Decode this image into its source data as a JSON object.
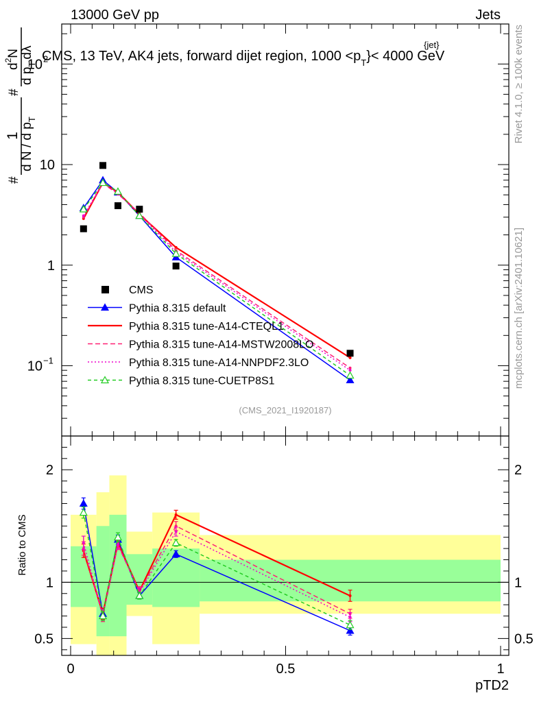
{
  "header": {
    "left": "13000 GeV pp",
    "right": "Jets"
  },
  "side_labels": {
    "rivet": "Rivet 4.1.0, ≥ 100k events",
    "mcplots": "mcplots.cern.ch [arXiv:2401.10621]"
  },
  "chart_data": {
    "type": "line",
    "title": "CMS, 13 TeV, AK4 jets, forward dijet region, 1000 <p",
    "title_sup": "{jet}",
    "title_sub": "T",
    "title_end": "}< 4000 GeV",
    "analysis_id": "(CMS_2021_I1920187)",
    "xlabel": "pTD2",
    "ylabel": "1/dN/dpT dN/(dpT dλ)",
    "ylabel_parts": {
      "hash1": "#",
      "hash2": "#",
      "num": "1",
      "den": "d N / d p",
      "den_sub": "T",
      "frac2_num": "d",
      "frac2_num_sup": "2",
      "frac2_num_end": "N",
      "frac2_den": "d p",
      "frac2_den_sub": "T",
      "frac2_den_end": "dλ"
    },
    "ratio_ylabel": "Ratio to CMS",
    "xlim": [
      0,
      1
    ],
    "ylim_main": [
      0.02,
      250
    ],
    "ylim_ratio": [
      0.35,
      2.3
    ],
    "x_ticks": [
      0,
      0.5,
      1
    ],
    "x_tick_labels": [
      "0",
      "0.5",
      "1"
    ],
    "y_ticks_main": [
      {
        "value": 0.1,
        "base": "10",
        "exp": "−1"
      },
      {
        "value": 1,
        "base": "1",
        "exp": ""
      },
      {
        "value": 10,
        "base": "10",
        "exp": ""
      },
      {
        "value": 100,
        "base": "10",
        "exp": "2"
      }
    ],
    "y_ticks_ratio": [
      {
        "value": 0.5,
        "label": "0.5"
      },
      {
        "value": 1,
        "label": "1"
      },
      {
        "value": 2,
        "label": "2"
      }
    ],
    "bins": [
      {
        "lo": 0.0,
        "hi": 0.06
      },
      {
        "lo": 0.06,
        "hi": 0.09
      },
      {
        "lo": 0.09,
        "hi": 0.13
      },
      {
        "lo": 0.13,
        "hi": 0.19
      },
      {
        "lo": 0.19,
        "hi": 0.3
      },
      {
        "lo": 0.3,
        "hi": 1.0
      }
    ],
    "x": [
      0.03,
      0.075,
      0.11,
      0.16,
      0.245,
      0.65
    ],
    "data": {
      "name": "CMS",
      "values": [
        2.3,
        9.8,
        3.9,
        3.6,
        0.98,
        0.133
      ],
      "band_inner": [
        [
          0.78,
          1.32
        ],
        [
          0.52,
          1.5
        ],
        [
          0.52,
          1.6
        ],
        [
          0.8,
          1.25
        ],
        [
          0.78,
          1.3
        ],
        [
          0.83,
          1.2
        ]
      ],
      "band_outer": [
        [
          0.45,
          1.6
        ],
        [
          0.33,
          1.8
        ],
        [
          0.33,
          1.95
        ],
        [
          0.7,
          1.45
        ],
        [
          0.45,
          1.62
        ],
        [
          0.72,
          1.42
        ]
      ]
    },
    "series": [
      {
        "name": "Pythia 8.315 default",
        "color": "#0000ff",
        "dash": "",
        "marker": "filled-triangle",
        "values": [
          3.7,
          7.0,
          5.3,
          3.1,
          1.2,
          0.072
        ],
        "ratio": [
          1.7,
          0.72,
          1.38,
          0.88,
          1.25,
          0.57
        ],
        "ratio_err": [
          0.05,
          0.04,
          0.04,
          0.03,
          0.03,
          0.04
        ]
      },
      {
        "name": "Pythia 8.315 tune-A14-CTEQL1",
        "color": "#ff0000",
        "dash": "",
        "marker": "none",
        "values": [
          2.9,
          6.6,
          5.3,
          3.2,
          1.5,
          0.12
        ],
        "ratio": [
          1.28,
          0.72,
          1.35,
          0.92,
          1.6,
          0.88
        ],
        "ratio_err": [
          0.06,
          0.05,
          0.04,
          0.04,
          0.04,
          0.05
        ]
      },
      {
        "name": "Pythia 8.315 tune-A14-MSTW2008LO",
        "color": "#ff1f74",
        "dash": "7,4",
        "marker": "none",
        "values": [
          3.0,
          6.5,
          5.1,
          3.3,
          1.4,
          0.095
        ],
        "ratio": [
          1.3,
          0.7,
          1.33,
          0.92,
          1.5,
          0.72
        ],
        "ratio_err": [
          0.06,
          0.05,
          0.04,
          0.04,
          0.04,
          0.04
        ]
      },
      {
        "name": "Pythia 8.315 tune-A14-NNPDF2.3LO",
        "color": "#ee00cc",
        "dash": "2,3",
        "marker": "none",
        "values": [
          3.1,
          6.6,
          5.2,
          3.2,
          1.35,
          0.09
        ],
        "ratio": [
          1.35,
          0.71,
          1.34,
          0.91,
          1.45,
          0.69
        ],
        "ratio_err": [
          0.06,
          0.05,
          0.04,
          0.04,
          0.04,
          0.04
        ]
      },
      {
        "name": "Pythia 8.315 tune-CUETP8S1",
        "color": "#22cc22",
        "dash": "5,4",
        "marker": "open-triangle",
        "values": [
          3.6,
          6.6,
          5.4,
          3.1,
          1.3,
          0.08
        ],
        "ratio": [
          1.62,
          0.7,
          1.4,
          0.88,
          1.35,
          0.62
        ],
        "ratio_err": [
          0.05,
          0.04,
          0.04,
          0.03,
          0.03,
          0.04
        ]
      }
    ]
  }
}
